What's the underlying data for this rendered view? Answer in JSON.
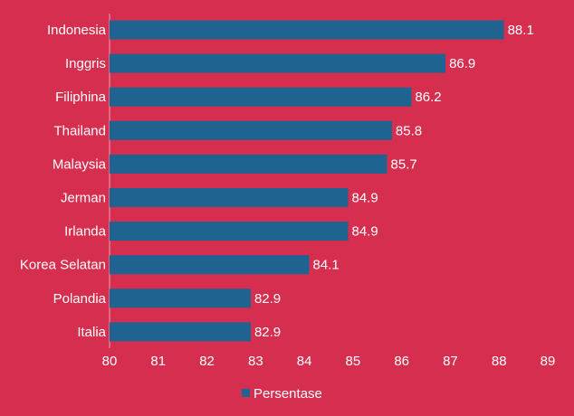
{
  "chart_data": {
    "type": "bar",
    "orientation": "horizontal",
    "categories": [
      "Indonesia",
      "Inggris",
      "Filiphina",
      "Thailand",
      "Malaysia",
      "Jerman",
      "Irlanda",
      "Korea Selatan",
      "Polandia",
      "Italia"
    ],
    "series": [
      {
        "name": "Persentase",
        "values": [
          88.1,
          86.9,
          86.2,
          85.8,
          85.7,
          84.9,
          84.9,
          84.1,
          82.9,
          82.9
        ],
        "data_labels": [
          "88.1",
          "86.9",
          "86.2",
          "85.8",
          "85.7",
          "84.9",
          "84.9",
          "84.1",
          "82.9",
          "82.9"
        ]
      }
    ],
    "xlim": [
      80,
      89
    ],
    "xticks": [
      "80",
      "81",
      "82",
      "83",
      "84",
      "85",
      "86",
      "87",
      "88",
      "89"
    ],
    "grid": false,
    "legend_position": "bottom",
    "colors": {
      "background": "#d52e4f",
      "bar": "#1f6391",
      "text": "#ffffff",
      "axis": "#e8a3b0"
    }
  }
}
